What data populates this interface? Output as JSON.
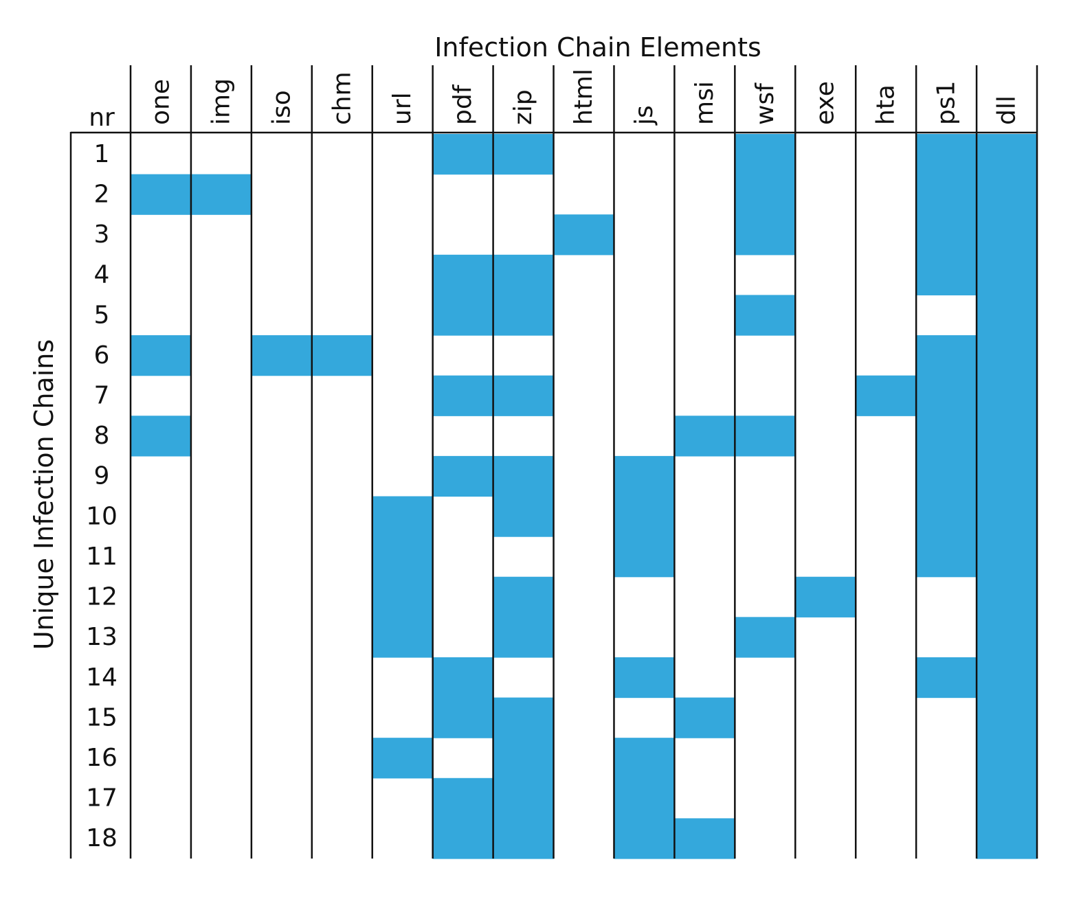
{
  "chart_data": {
    "type": "heatmap",
    "title": "Infection Chain Elements",
    "ylabel": "Unique Infection Chains",
    "row_header": "nr",
    "fill_color": "#34a8dc",
    "columns": [
      "one",
      "img",
      "iso",
      "chm",
      "url",
      "pdf",
      "zip",
      "html",
      "js",
      "msi",
      "wsf",
      "exe",
      "hta",
      "ps1",
      "dll"
    ],
    "rows": [
      "1",
      "2",
      "3",
      "4",
      "5",
      "6",
      "7",
      "8",
      "9",
      "10",
      "11",
      "12",
      "13",
      "14",
      "15",
      "16",
      "17",
      "18"
    ],
    "matrix": [
      [
        0,
        0,
        0,
        0,
        0,
        1,
        1,
        0,
        0,
        0,
        1,
        0,
        0,
        1,
        1
      ],
      [
        1,
        1,
        0,
        0,
        0,
        0,
        0,
        0,
        0,
        0,
        1,
        0,
        0,
        1,
        1
      ],
      [
        0,
        0,
        0,
        0,
        0,
        0,
        0,
        1,
        0,
        0,
        1,
        0,
        0,
        1,
        1
      ],
      [
        0,
        0,
        0,
        0,
        0,
        1,
        1,
        0,
        0,
        0,
        0,
        0,
        0,
        1,
        1
      ],
      [
        0,
        0,
        0,
        0,
        0,
        1,
        1,
        0,
        0,
        0,
        1,
        0,
        0,
        0,
        1
      ],
      [
        1,
        0,
        1,
        1,
        0,
        0,
        0,
        0,
        0,
        0,
        0,
        0,
        0,
        1,
        1
      ],
      [
        0,
        0,
        0,
        0,
        0,
        1,
        1,
        0,
        0,
        0,
        0,
        0,
        1,
        1,
        1
      ],
      [
        1,
        0,
        0,
        0,
        0,
        0,
        0,
        0,
        0,
        1,
        1,
        0,
        0,
        1,
        1
      ],
      [
        0,
        0,
        0,
        0,
        0,
        1,
        1,
        0,
        1,
        0,
        0,
        0,
        0,
        1,
        1
      ],
      [
        0,
        0,
        0,
        0,
        1,
        0,
        1,
        0,
        1,
        0,
        0,
        0,
        0,
        1,
        1
      ],
      [
        0,
        0,
        0,
        0,
        1,
        0,
        0,
        0,
        1,
        0,
        0,
        0,
        0,
        1,
        1
      ],
      [
        0,
        0,
        0,
        0,
        1,
        0,
        1,
        0,
        0,
        0,
        0,
        1,
        0,
        0,
        1
      ],
      [
        0,
        0,
        0,
        0,
        1,
        0,
        1,
        0,
        0,
        0,
        1,
        0,
        0,
        0,
        1
      ],
      [
        0,
        0,
        0,
        0,
        0,
        1,
        0,
        0,
        1,
        0,
        0,
        0,
        0,
        1,
        1
      ],
      [
        0,
        0,
        0,
        0,
        0,
        1,
        1,
        0,
        0,
        1,
        0,
        0,
        0,
        0,
        1
      ],
      [
        0,
        0,
        0,
        0,
        1,
        0,
        1,
        0,
        1,
        0,
        0,
        0,
        0,
        0,
        1
      ],
      [
        0,
        0,
        0,
        0,
        0,
        1,
        1,
        0,
        1,
        0,
        0,
        0,
        0,
        0,
        1
      ],
      [
        0,
        0,
        0,
        0,
        0,
        1,
        1,
        0,
        1,
        1,
        0,
        0,
        0,
        0,
        1
      ]
    ]
  }
}
